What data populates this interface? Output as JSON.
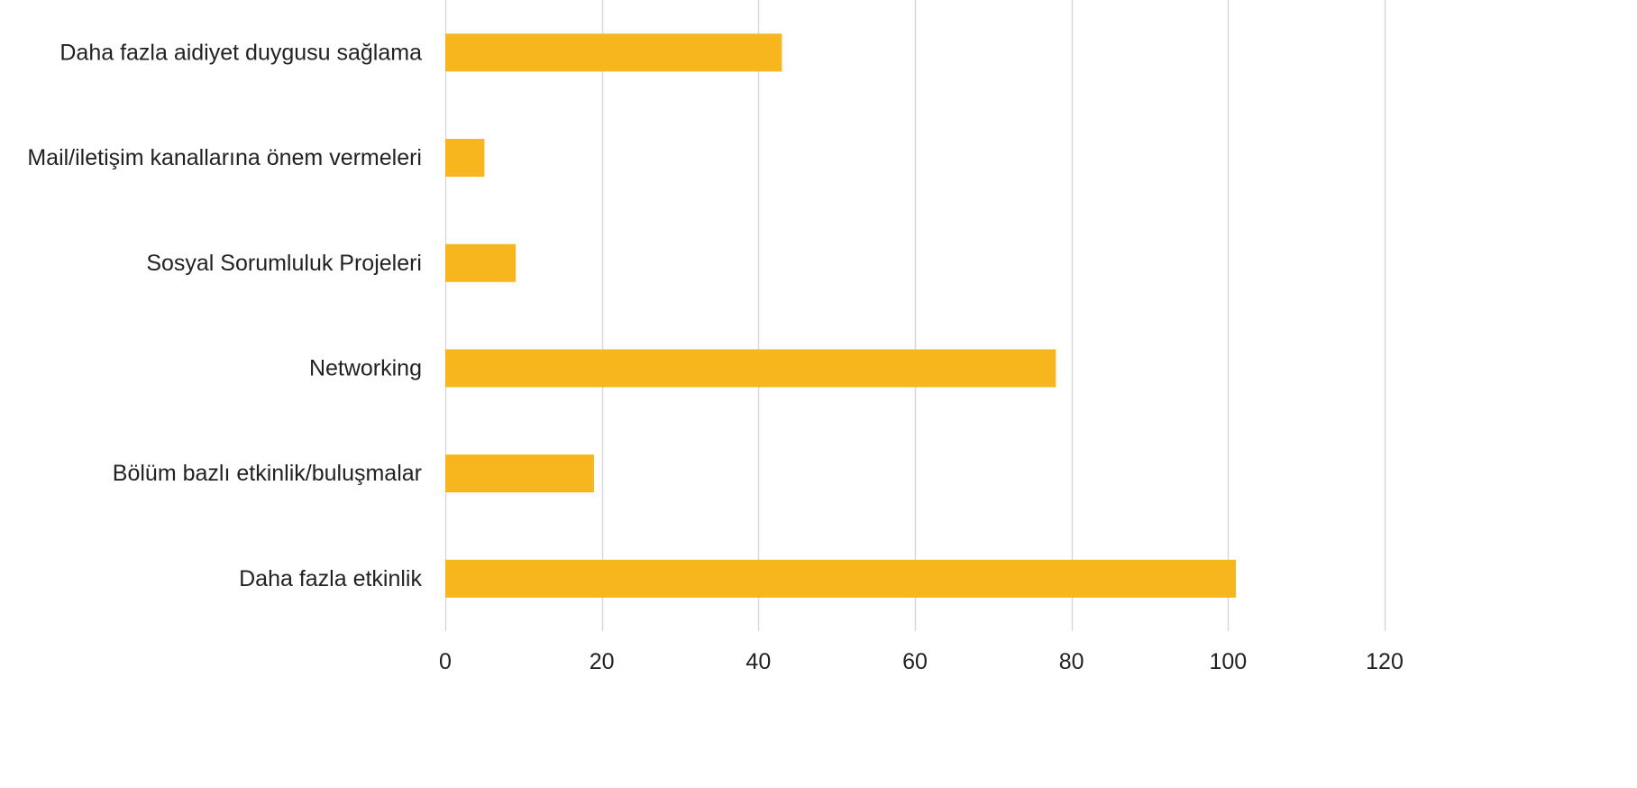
{
  "chart_data": {
    "type": "bar",
    "orientation": "horizontal",
    "categories": [
      "Daha fazla aidiyet duygusu sağlama",
      "Mail/iletişim kanallarına önem vermeleri",
      "Sosyal Sorumluluk Projeleri",
      "Networking",
      "Bölüm bazlı etkinlik/buluşmalar",
      "Daha fazla etkinlik"
    ],
    "values": [
      43,
      5,
      9,
      78,
      19,
      101
    ],
    "xlim": [
      0,
      120
    ],
    "xticks": [
      0,
      20,
      40,
      60,
      80,
      100,
      120
    ],
    "xtick_labels": [
      "0",
      "20",
      "40",
      "60",
      "80",
      "100",
      "120"
    ],
    "grid": "vertical",
    "legend": "none",
    "bar_color": "#F7B51E",
    "grid_color": "#D9D9D9"
  }
}
